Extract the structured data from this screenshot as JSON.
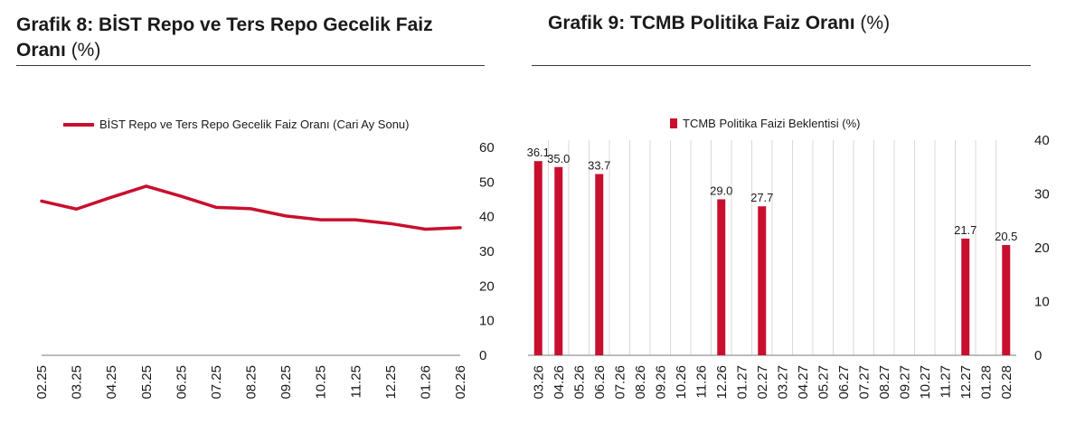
{
  "chart8": {
    "title_bold": "Grafik 8:  BİST Repo ve Ters Repo Gecelik Faiz Oranı",
    "title_unit": " (%)"
  },
  "chart9": {
    "title_bold": "Grafik 9: TCMB Politika Faiz Oranı",
    "title_unit": " (%)"
  },
  "colors": {
    "series": "#c8102e",
    "axis": "#7a7a7a",
    "grid": "#d9d9d9"
  },
  "chart_data": [
    {
      "type": "line",
      "title": "Grafik 8: BİST Repo ve Ters Repo Gecelik Faiz Oranı (%)",
      "legend": "BİST Repo ve Ters Repo Gecelik Faiz Oranı (Cari Ay Sonu)",
      "categories": [
        "02.25",
        "03.25",
        "04.25",
        "05.25",
        "06.25",
        "07.25",
        "08.25",
        "09.25",
        "10.25",
        "11.25",
        "12.25",
        "01.26",
        "02.26"
      ],
      "values": [
        44.5,
        42.2,
        45.6,
        48.8,
        45.9,
        42.7,
        42.3,
        40.2,
        39.1,
        39.1,
        38.0,
        36.4,
        36.8
      ],
      "y_ticks": [
        "0",
        "10",
        "20",
        "30",
        "40",
        "50",
        "60"
      ],
      "ylim": [
        0,
        60
      ],
      "yaxis_side": "right",
      "grid": false
    },
    {
      "type": "bar",
      "title": "Grafik 9: TCMB Politika Faiz Oranı (%)",
      "legend": "TCMB Politika Faizi Beklentisi (%)",
      "categories": [
        "03.26",
        "04.26",
        "05.26",
        "06.26",
        "07.26",
        "08.26",
        "09.26",
        "10.26",
        "11.26",
        "12.26",
        "01.27",
        "02.27",
        "03.27",
        "04.27",
        "05.27",
        "06.27",
        "07.27",
        "08.27",
        "09.27",
        "10.27",
        "11.27",
        "12.27",
        "01.28",
        "02.28"
      ],
      "values": [
        36.1,
        35.0,
        null,
        33.7,
        null,
        null,
        null,
        null,
        null,
        29.0,
        null,
        27.7,
        null,
        null,
        null,
        null,
        null,
        null,
        null,
        null,
        null,
        21.7,
        null,
        20.5
      ],
      "labels": [
        "36.1",
        "35.0",
        "",
        "33.7",
        "",
        "",
        "",
        "",
        "",
        "29.0",
        "",
        "27.7",
        "",
        "",
        "",
        "",
        "",
        "",
        "",
        "",
        "",
        "21.7",
        "",
        "20.5"
      ],
      "y_ticks": [
        "0",
        "10",
        "20",
        "30",
        "40"
      ],
      "ylim": [
        0,
        40
      ],
      "yaxis_side": "right",
      "grid": "vertical"
    }
  ]
}
